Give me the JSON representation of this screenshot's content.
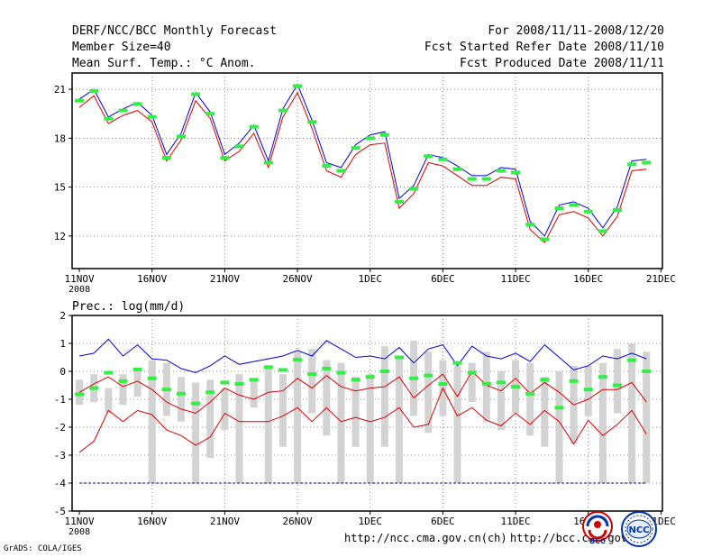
{
  "header": {
    "title": "DERF/NCC/BCC Monthly Forecast",
    "member_size": "Member Size=40",
    "variable": "Mean Surf. Temp.: °C Anom.",
    "period": "For 2008/11/11-2008/12/20",
    "refer_date": "Fcst Started Refer Date 2008/11/10",
    "produced_date": "Fcst Produced Date 2008/11/11"
  },
  "footer": {
    "grads_credit": "GrADS: COLA/IGES",
    "url_ncc": "http://ncc.cma.gov.cn(ch)",
    "url_bcc": "http://bcc.cma.gov.cn",
    "logo_bcc_text": "BCC",
    "logo_ncc_text": "NCC"
  },
  "colors": {
    "blue": "#0000dd",
    "red": "#dd0000",
    "green": "#33ee44",
    "gray": "#d3d3d3",
    "dark_blue": "#000099"
  },
  "chart_data": [
    {
      "type": "line",
      "title": "Mean Surf. Temp.: °C Anom.",
      "x_ticks": [
        "11NOV",
        "16NOV",
        "21NOV",
        "26NOV",
        "1DEC",
        "6DEC",
        "11DEC",
        "16DEC",
        "21DEC"
      ],
      "x_year": "2008",
      "x_days": [
        1,
        2,
        3,
        4,
        5,
        6,
        7,
        8,
        9,
        10,
        11,
        12,
        13,
        14,
        15,
        16,
        17,
        18,
        19,
        20,
        21,
        22,
        23,
        24,
        25,
        26,
        27,
        28,
        29,
        30,
        31,
        32,
        33,
        34,
        35,
        36,
        37,
        38,
        39,
        40
      ],
      "ylim": [
        10,
        22
      ],
      "y_ticks": [
        12,
        15,
        18,
        21
      ],
      "series": [
        {
          "name": "upper",
          "color": "blue",
          "values": [
            20.4,
            21.0,
            19.3,
            19.8,
            20.2,
            19.4,
            17.0,
            18.3,
            20.8,
            19.6,
            17.0,
            17.7,
            18.8,
            16.6,
            19.8,
            21.3,
            19.1,
            16.5,
            16.2,
            17.6,
            18.2,
            18.4,
            14.3,
            15.1,
            17.0,
            16.8,
            16.3,
            15.7,
            15.7,
            16.2,
            16.1,
            12.9,
            12.0,
            13.9,
            14.1,
            13.7,
            12.5,
            13.8,
            16.6,
            16.7
          ]
        },
        {
          "name": "mean",
          "color": "black",
          "values": [
            20.2,
            20.8,
            19.1,
            19.6,
            20.0,
            19.2,
            16.8,
            18.1,
            20.6,
            19.4,
            16.8,
            17.5,
            18.6,
            16.4,
            19.6,
            21.1,
            18.9,
            16.2,
            15.9,
            17.3,
            17.9,
            18.0,
            14.0,
            14.9,
            16.8,
            16.6,
            16.0,
            15.4,
            15.4,
            15.9,
            15.8,
            12.7,
            11.8,
            13.6,
            13.8,
            13.4,
            12.3,
            13.5,
            16.3,
            16.4
          ]
        },
        {
          "name": "lower",
          "color": "red",
          "values": [
            19.9,
            20.6,
            18.9,
            19.4,
            19.7,
            19.0,
            16.6,
            17.9,
            20.3,
            19.2,
            16.6,
            17.2,
            18.3,
            16.2,
            19.3,
            20.8,
            18.6,
            16.0,
            15.6,
            17.0,
            17.6,
            17.7,
            13.7,
            14.6,
            16.5,
            16.3,
            15.7,
            15.1,
            15.1,
            15.6,
            15.5,
            12.4,
            11.6,
            13.3,
            13.5,
            13.1,
            12.0,
            13.2,
            16.0,
            16.1
          ]
        },
        {
          "name": "observed",
          "color": "green",
          "style": "marker",
          "values": [
            20.3,
            20.9,
            19.2,
            19.7,
            20.1,
            19.3,
            16.8,
            18.1,
            20.7,
            19.5,
            16.8,
            17.5,
            18.7,
            16.5,
            19.7,
            21.2,
            19.0,
            16.3,
            16.0,
            17.4,
            18.0,
            18.2,
            14.1,
            14.9,
            16.9,
            16.7,
            16.1,
            15.5,
            15.5,
            16.0,
            15.9,
            12.7,
            11.8,
            13.7,
            13.9,
            13.5,
            12.3,
            13.6,
            16.4,
            16.5
          ]
        }
      ]
    },
    {
      "type": "line",
      "title": "Prec.: log(mm/d)",
      "x_ticks": [
        "11NOV",
        "16NOV",
        "21NOV",
        "26NOV",
        "1DEC",
        "6DEC",
        "11DEC",
        "16DEC",
        "21DEC"
      ],
      "x_year": "2008",
      "x_days": [
        1,
        2,
        3,
        4,
        5,
        6,
        7,
        8,
        9,
        10,
        11,
        12,
        13,
        14,
        15,
        16,
        17,
        18,
        19,
        20,
        21,
        22,
        23,
        24,
        25,
        26,
        27,
        28,
        29,
        30,
        31,
        32,
        33,
        34,
        35,
        36,
        37,
        38,
        39,
        40
      ],
      "ylim": [
        -5,
        2
      ],
      "y_ticks": [
        -5,
        -4,
        -3,
        -2,
        -1,
        0,
        1,
        2
      ],
      "spread_bars": {
        "name": "ensemble spread",
        "color": "gray",
        "low": [
          -1.2,
          -1.1,
          -1.5,
          -1.2,
          -0.9,
          -4.0,
          -1.6,
          -1.8,
          -4.0,
          -3.1,
          -2.1,
          -4.0,
          -1.3,
          -4.0,
          -2.7,
          -4.0,
          -1.5,
          -2.3,
          -4.0,
          -2.7,
          -4.0,
          -2.7,
          -4.0,
          -1.6,
          -2.2,
          -1.6,
          -4.0,
          -1.1,
          -1.8,
          -2.1,
          -1.5,
          -2.3,
          -2.7,
          -4.0,
          -2.6,
          -1.6,
          -4.0,
          -1.5,
          -4.0,
          -4.0
        ],
        "high": [
          -0.3,
          -0.1,
          -0.6,
          -0.1,
          0.0,
          0.4,
          0.3,
          -0.2,
          -0.4,
          -0.3,
          -0.6,
          -0.1,
          -0.3,
          0.2,
          -0.1,
          0.7,
          0.8,
          0.4,
          0.3,
          -0.2,
          -0.1,
          0.9,
          0.5,
          1.1,
          0.7,
          0.4,
          0.2,
          0.3,
          0.7,
          0.0,
          0.4,
          0.3,
          -0.2,
          0.0,
          0.2,
          0.2,
          0.3,
          0.8,
          1.0,
          0.7
        ]
      },
      "series": [
        {
          "name": "upper",
          "color": "blue",
          "values": [
            0.55,
            0.65,
            1.15,
            0.55,
            0.95,
            0.45,
            0.4,
            0.1,
            -0.05,
            0.2,
            0.55,
            0.25,
            0.35,
            0.45,
            0.55,
            0.75,
            0.55,
            1.1,
            0.8,
            0.5,
            0.55,
            0.45,
            0.85,
            0.3,
            0.8,
            0.95,
            0.2,
            0.9,
            0.55,
            0.45,
            0.65,
            0.35,
            0.95,
            0.5,
            0.05,
            0.2,
            0.55,
            0.45,
            0.65,
            0.45
          ]
        },
        {
          "name": "mean",
          "color": "black",
          "values": [
            -0.15,
            -0.1,
            0.2,
            -0.05,
            0.15,
            -0.2,
            -0.5,
            -0.7,
            -0.95,
            -0.6,
            0.05,
            -0.4,
            -0.5,
            -0.35,
            -0.2,
            0.1,
            -0.15,
            0.3,
            -0.1,
            -0.25,
            -0.15,
            -0.15,
            0.15,
            -0.5,
            0.05,
            0.2,
            -0.5,
            0.35,
            -0.15,
            -0.3,
            0.15,
            -0.4,
            0.15,
            -0.35,
            -0.7,
            -0.55,
            -0.2,
            -0.3,
            0.0,
            -0.7
          ]
        },
        {
          "name": "lower",
          "color": "red",
          "values": [
            -0.75,
            -0.45,
            -0.2,
            -0.55,
            -0.35,
            -0.65,
            -1.1,
            -1.35,
            -1.5,
            -1.1,
            -0.6,
            -0.85,
            -1.0,
            -0.75,
            -0.7,
            -0.25,
            -0.6,
            -0.15,
            -0.55,
            -0.7,
            -0.6,
            -0.55,
            -0.2,
            -0.95,
            -0.5,
            -0.1,
            -0.9,
            0.0,
            -0.5,
            -0.7,
            -0.25,
            -0.8,
            -0.4,
            -0.75,
            -1.2,
            -1.0,
            -0.65,
            -0.65,
            -0.4,
            -1.1
          ]
        },
        {
          "name": "lowest",
          "color": "red",
          "values": [
            -2.9,
            -2.5,
            -1.4,
            -1.8,
            -1.4,
            -1.55,
            -2.1,
            -2.3,
            -2.65,
            -2.35,
            -1.5,
            -1.8,
            -1.8,
            -1.8,
            -1.6,
            -1.3,
            -1.8,
            -1.3,
            -1.8,
            -1.65,
            -1.8,
            -1.65,
            -1.3,
            -2.0,
            -1.9,
            -0.6,
            -1.6,
            -1.3,
            -1.75,
            -1.95,
            -1.5,
            -1.9,
            -1.4,
            -1.8,
            -2.6,
            -1.75,
            -2.3,
            -1.9,
            -1.4,
            -2.25
          ]
        },
        {
          "name": "observed",
          "color": "green",
          "style": "marker",
          "values": [
            -0.82,
            -0.6,
            -0.05,
            -0.35,
            0.07,
            -0.25,
            -0.65,
            -0.8,
            -1.15,
            -0.75,
            -0.4,
            -0.45,
            -0.3,
            0.15,
            0.05,
            0.42,
            -0.1,
            0.1,
            -0.05,
            -0.3,
            -0.2,
            0.0,
            0.5,
            -0.25,
            -0.15,
            -0.45,
            0.3,
            -0.05,
            -0.45,
            -0.4,
            -0.55,
            -0.8,
            -0.3,
            -1.3,
            -0.35,
            -0.65,
            -0.2,
            -0.5,
            0.4,
            0.0
          ]
        },
        {
          "name": "floor",
          "color": "dark_blue",
          "style": "dashed",
          "values": [
            -4,
            -4,
            -4,
            -4,
            -4,
            -4,
            -4,
            -4,
            -4,
            -4,
            -4,
            -4,
            -4,
            -4,
            -4,
            -4,
            -4,
            -4,
            -4,
            -4,
            -4,
            -4,
            -4,
            -4,
            -4,
            -4,
            -4,
            -4,
            -4,
            -4,
            -4,
            -4,
            -4,
            -4,
            -4,
            -4,
            -4,
            -4,
            -4,
            -4
          ]
        }
      ]
    }
  ]
}
